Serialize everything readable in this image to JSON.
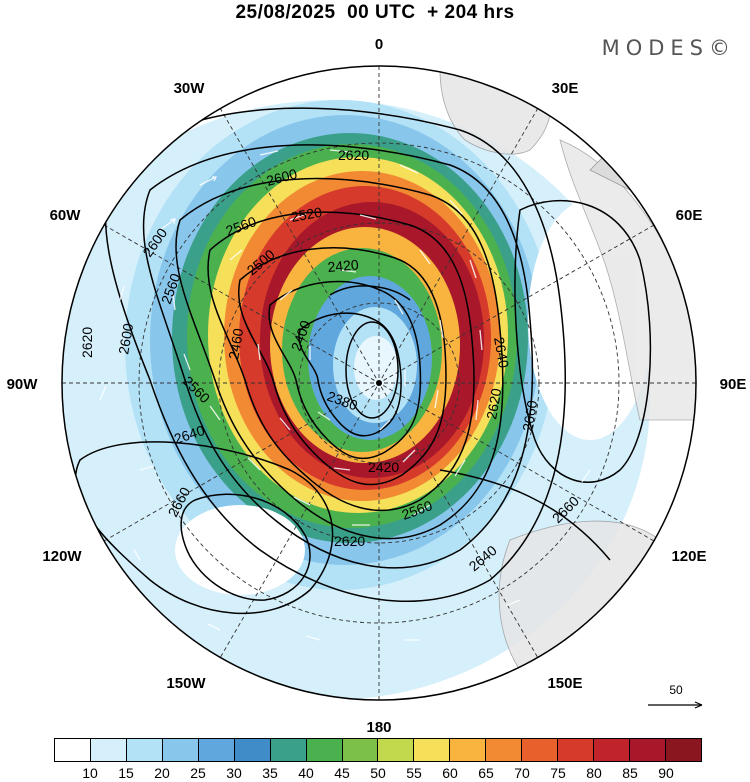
{
  "title": "25/08/2025  00 UTC  + 204 hrs",
  "brand": "MODES©",
  "longitude_labels": {
    "top": "0",
    "bottom": "180",
    "left": "90W",
    "right": "90E",
    "upper_left_1": "30W",
    "upper_left_2": "60W",
    "upper_right_1": "30E",
    "upper_right_2": "60E",
    "lower_left_1": "120W",
    "lower_left_2": "150W",
    "lower_right_1": "120E",
    "lower_right_2": "150E"
  },
  "contour_labels": {
    "c2620a": "2620",
    "c2600a": "2600",
    "c2560a": "2560",
    "c2520a": "2520",
    "c2600b": "2600",
    "c2560b": "2560",
    "c2500a": "2500",
    "c2420a": "2420",
    "c2620b": "2620",
    "c2600c": "2600",
    "c2400": "2400",
    "c2460": "2460",
    "c2640a": "2640",
    "c2380": "2380",
    "c2560c": "2560",
    "c2640b": "2640",
    "c2660a": "2660",
    "c2620c": "2620",
    "c2420b": "2420",
    "c2660b": "2660",
    "c2560d": "2560",
    "c2620d": "2620",
    "c2640c": "2640",
    "c2660c": "2660"
  },
  "vector_scale_label": "50",
  "colorbar": {
    "ticks": [
      "10",
      "15",
      "20",
      "25",
      "30",
      "35",
      "40",
      "45",
      "50",
      "55",
      "60",
      "65",
      "70",
      "75",
      "80",
      "85",
      "90"
    ],
    "colors": [
      "#ffffff",
      "#d6f0fb",
      "#b3e2f7",
      "#88c6ec",
      "#5fa7dc",
      "#3f8cc9",
      "#3aa08a",
      "#4bb14f",
      "#7cc04a",
      "#c2d94e",
      "#f6e05a",
      "#f8b43f",
      "#f28a34",
      "#e8602c",
      "#d63a2a",
      "#c0242a",
      "#a8182a",
      "#8a1620"
    ]
  }
}
